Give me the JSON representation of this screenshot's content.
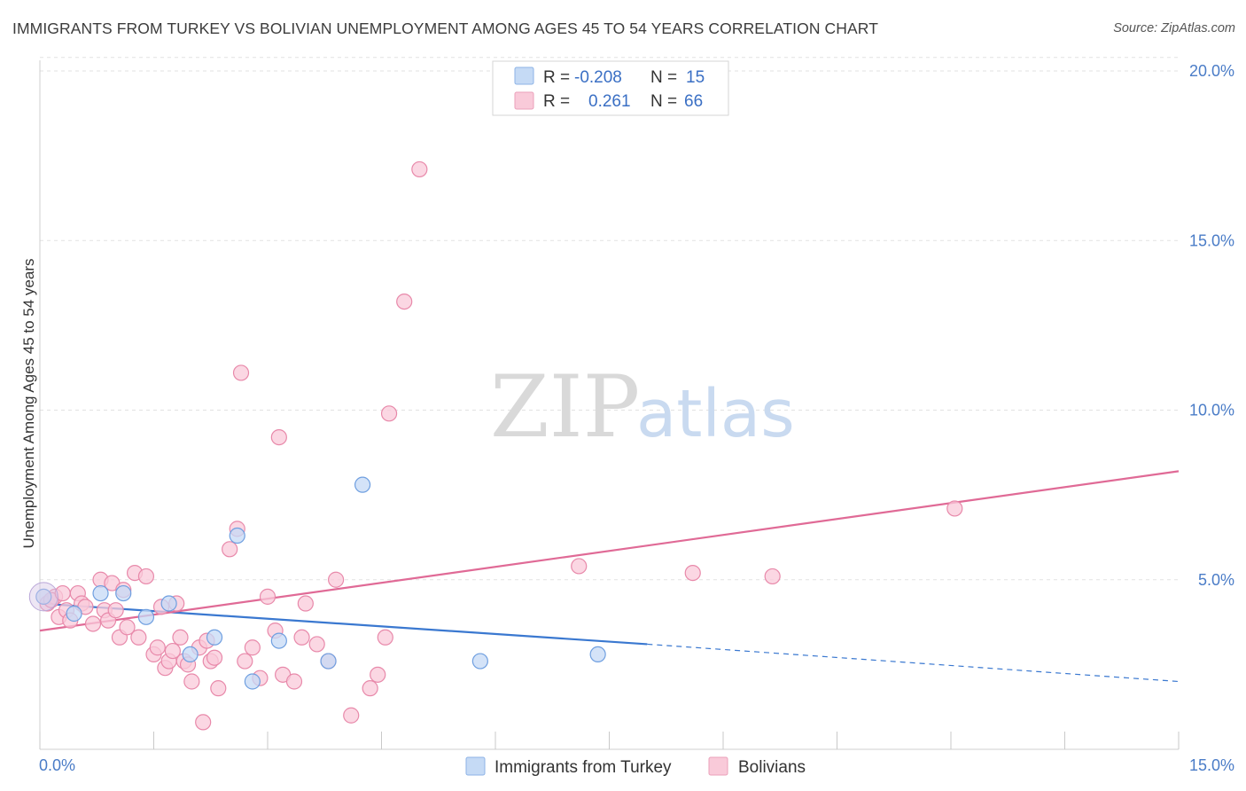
{
  "title": "IMMIGRANTS FROM TURKEY VS BOLIVIAN UNEMPLOYMENT AMONG AGES 45 TO 54 YEARS CORRELATION CHART",
  "source": "Source: ZipAtlas.com",
  "watermark": {
    "zip": "ZIP",
    "atlas": "atlas"
  },
  "legend_top": [
    {
      "r_label": "R =",
      "r_value": "-0.208",
      "n_label": "N =",
      "n_value": "15",
      "color": "#a9c8f0"
    },
    {
      "r_label": "R =",
      "r_value": "0.261",
      "n_label": "N =",
      "n_value": "66",
      "color": "#f7bcd0"
    }
  ],
  "chart_data": {
    "type": "scatter",
    "title": "IMMIGRANTS FROM TURKEY VS BOLIVIAN UNEMPLOYMENT AMONG AGES 45 TO 54 YEARS CORRELATION CHART",
    "xlabel": "",
    "ylabel": "Unemployment Among Ages 45 to 54 years",
    "xlim": [
      0,
      15
    ],
    "ylim": [
      0,
      20
    ],
    "x_tick_labels": [
      "0.0%",
      "15.0%"
    ],
    "y_ticks": [
      5,
      10,
      15,
      20
    ],
    "y_tick_labels": [
      "5.0%",
      "10.0%",
      "15.0%",
      "20.0%"
    ],
    "grid": true,
    "legend_position": "bottom",
    "series": [
      {
        "name": "Immigrants from Turkey",
        "color": "#6f9fe0",
        "fill": "#c5daf5",
        "points": [
          [
            0.05,
            4.5
          ],
          [
            0.45,
            4.0
          ],
          [
            0.8,
            4.6
          ],
          [
            1.1,
            4.6
          ],
          [
            1.4,
            3.9
          ],
          [
            1.7,
            4.3
          ],
          [
            1.98,
            2.8
          ],
          [
            2.3,
            3.3
          ],
          [
            2.6,
            6.3
          ],
          [
            2.8,
            2.0
          ],
          [
            3.15,
            3.2
          ],
          [
            3.8,
            2.6
          ],
          [
            4.25,
            7.8
          ],
          [
            5.8,
            2.6
          ],
          [
            7.35,
            2.8
          ]
        ],
        "trend": {
          "x0": 0,
          "y0": 4.3,
          "x1": 8.0,
          "y1": 3.1,
          "dash_x1": 15.0,
          "dash_y1": 2.0,
          "color": "#3a78d0"
        }
      },
      {
        "name": "Bolivians",
        "color": "#e889aa",
        "fill": "#f9cad9",
        "points": [
          [
            0.1,
            4.3
          ],
          [
            0.2,
            4.5
          ],
          [
            0.25,
            3.9
          ],
          [
            0.35,
            4.1
          ],
          [
            0.4,
            3.8
          ],
          [
            0.5,
            4.6
          ],
          [
            0.55,
            4.3
          ],
          [
            0.6,
            4.2
          ],
          [
            0.7,
            3.7
          ],
          [
            0.8,
            5.0
          ],
          [
            0.85,
            4.1
          ],
          [
            0.9,
            3.8
          ],
          [
            0.95,
            4.9
          ],
          [
            1.0,
            4.1
          ],
          [
            1.05,
            3.3
          ],
          [
            1.1,
            4.7
          ],
          [
            1.15,
            3.6
          ],
          [
            1.25,
            5.2
          ],
          [
            1.3,
            3.3
          ],
          [
            1.4,
            5.1
          ],
          [
            1.5,
            2.8
          ],
          [
            1.55,
            3.0
          ],
          [
            1.6,
            4.2
          ],
          [
            1.65,
            2.4
          ],
          [
            1.7,
            2.6
          ],
          [
            1.75,
            2.9
          ],
          [
            1.8,
            4.3
          ],
          [
            1.85,
            3.3
          ],
          [
            1.9,
            2.6
          ],
          [
            1.95,
            2.5
          ],
          [
            2.0,
            2.0
          ],
          [
            2.1,
            3.0
          ],
          [
            2.15,
            0.8
          ],
          [
            2.2,
            3.2
          ],
          [
            2.25,
            2.6
          ],
          [
            2.3,
            2.7
          ],
          [
            2.35,
            1.8
          ],
          [
            2.5,
            5.9
          ],
          [
            2.6,
            6.5
          ],
          [
            2.65,
            11.1
          ],
          [
            2.7,
            2.6
          ],
          [
            2.8,
            3.0
          ],
          [
            2.9,
            2.1
          ],
          [
            3.0,
            4.5
          ],
          [
            3.1,
            3.5
          ],
          [
            3.15,
            9.2
          ],
          [
            3.2,
            2.2
          ],
          [
            3.35,
            2.0
          ],
          [
            3.45,
            3.3
          ],
          [
            3.5,
            4.3
          ],
          [
            3.65,
            3.1
          ],
          [
            3.8,
            2.6
          ],
          [
            3.9,
            5.0
          ],
          [
            4.1,
            1.0
          ],
          [
            4.35,
            1.8
          ],
          [
            4.45,
            2.2
          ],
          [
            4.55,
            3.3
          ],
          [
            4.6,
            9.9
          ],
          [
            4.8,
            13.2
          ],
          [
            5.0,
            17.1
          ],
          [
            7.1,
            5.4
          ],
          [
            8.6,
            5.2
          ],
          [
            9.65,
            5.1
          ],
          [
            12.05,
            7.1
          ],
          [
            0.15,
            4.4
          ],
          [
            0.3,
            4.6
          ]
        ],
        "trend": {
          "x0": 0,
          "y0": 3.5,
          "x1": 15.0,
          "y1": 8.2,
          "color": "#e06a96"
        }
      }
    ]
  }
}
